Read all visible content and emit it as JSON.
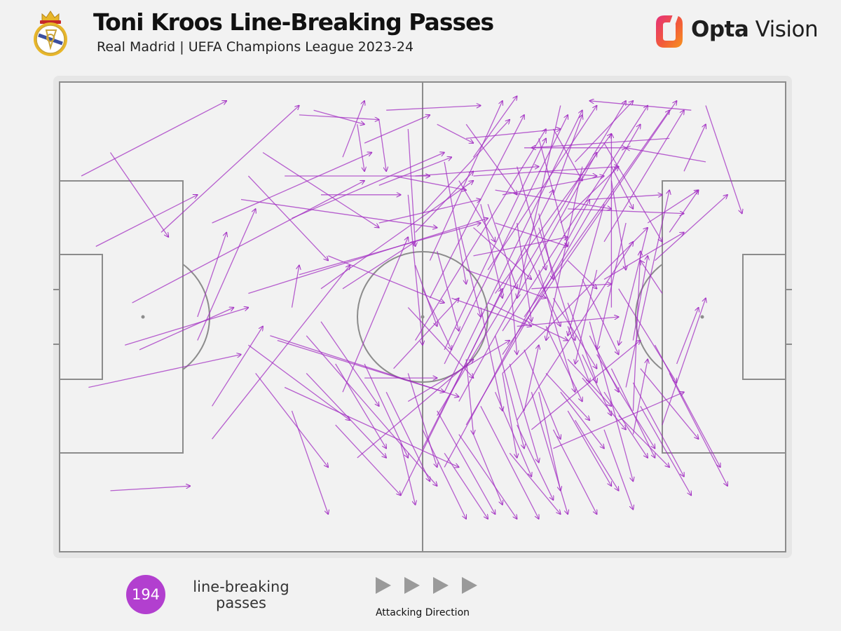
{
  "header": {
    "title": "Toni Kroos Line-Breaking Passes",
    "subtitle": "Real Madrid | UEFA Champions League 2023-24"
  },
  "brand": {
    "name_bold": "Opta",
    "name_regular": " Vision"
  },
  "footer": {
    "count": "194",
    "count_label": "line-breaking passes",
    "direction_label": "Attacking Direction"
  },
  "colors": {
    "pass": "#a12cc2",
    "badge": "#b23fcf",
    "pitch_lines": "#8c8c8c",
    "pitch_fill": "#f2f2f2",
    "direction_arrow": "#9a9a9a"
  },
  "chart_data": {
    "type": "scatter",
    "title": "Toni Kroos Line-Breaking Passes",
    "subtitle": "Real Madrid | UEFA Champions League 2023-24",
    "units": "pitch coordinates 0-100 (x = attacking direction left to right, y = top to bottom)",
    "attacking_direction": "left-to-right",
    "total_passes": 194,
    "passes": [
      [
        3,
        20,
        23,
        4
      ],
      [
        7,
        15,
        15,
        33
      ],
      [
        5,
        35,
        19,
        24
      ],
      [
        10,
        47,
        42,
        21
      ],
      [
        9,
        56,
        26,
        48
      ],
      [
        11,
        57,
        24,
        48
      ],
      [
        19,
        50,
        23,
        32
      ],
      [
        14,
        32,
        33,
        5
      ],
      [
        4,
        65,
        25,
        58
      ],
      [
        21,
        76,
        40,
        39
      ],
      [
        19,
        55,
        27,
        27
      ],
      [
        7,
        87,
        18,
        86
      ],
      [
        28,
        15,
        44,
        31
      ],
      [
        31,
        20,
        51,
        20
      ],
      [
        26,
        20,
        37,
        38
      ],
      [
        25,
        25,
        52,
        31
      ],
      [
        26,
        45,
        59,
        29
      ],
      [
        21,
        30,
        43,
        15
      ],
      [
        32,
        29,
        53,
        15
      ],
      [
        36,
        24,
        47,
        24
      ],
      [
        33,
        41,
        58,
        30
      ],
      [
        36,
        44,
        57,
        21
      ],
      [
        32,
        48,
        33,
        39
      ],
      [
        39,
        44,
        49,
        34
      ],
      [
        39,
        66,
        48,
        33
      ],
      [
        42,
        63,
        52,
        63
      ],
      [
        46,
        61,
        55,
        46
      ],
      [
        26,
        56,
        40,
        72
      ],
      [
        30,
        55,
        53,
        66
      ],
      [
        27,
        62,
        37,
        82
      ],
      [
        34,
        62,
        45,
        80
      ],
      [
        34,
        54,
        52,
        86
      ],
      [
        32,
        70,
        37,
        92
      ],
      [
        38,
        73,
        47,
        88
      ],
      [
        48,
        68,
        62,
        55
      ],
      [
        41,
        80,
        57,
        59
      ],
      [
        21,
        69,
        28,
        52
      ],
      [
        44,
        8,
        45,
        19
      ],
      [
        39,
        16,
        42,
        4
      ],
      [
        49,
        32,
        57,
        19
      ],
      [
        29,
        54,
        55,
        67
      ],
      [
        31,
        65,
        55,
        82
      ],
      [
        37,
        37,
        53,
        47
      ],
      [
        48,
        48,
        57,
        63
      ],
      [
        33,
        7,
        44,
        8
      ],
      [
        35,
        6,
        42,
        9
      ],
      [
        41,
        9,
        42,
        19
      ],
      [
        42,
        13,
        51,
        7
      ],
      [
        44,
        22,
        54,
        16
      ],
      [
        45,
        6,
        58,
        5
      ],
      [
        48,
        24,
        50,
        56
      ],
      [
        57,
        16,
        63,
        3
      ],
      [
        50,
        28,
        62,
        8
      ],
      [
        51,
        38,
        61,
        4
      ],
      [
        51,
        46,
        64,
        7
      ],
      [
        49,
        55,
        67,
        10
      ],
      [
        53,
        57,
        67,
        12
      ],
      [
        53,
        60,
        70,
        7
      ],
      [
        53,
        66,
        72,
        6
      ],
      [
        55,
        68,
        74,
        15
      ],
      [
        52,
        71,
        78,
        4
      ],
      [
        56,
        73,
        80,
        9
      ],
      [
        50,
        78,
        68,
        23
      ],
      [
        53,
        82,
        73,
        25
      ],
      [
        47,
        88,
        61,
        44
      ],
      [
        59,
        40,
        74,
        5
      ],
      [
        60,
        45,
        76,
        11
      ],
      [
        61,
        53,
        81,
        5
      ],
      [
        61,
        58,
        85,
        4
      ],
      [
        61,
        62,
        81,
        31
      ],
      [
        63,
        72,
        79,
        34
      ],
      [
        65,
        74,
        80,
        55
      ],
      [
        68,
        78,
        86,
        66
      ],
      [
        64,
        50,
        84,
        6
      ],
      [
        69,
        30,
        77,
        18
      ],
      [
        73,
        25,
        83,
        24
      ],
      [
        68,
        24,
        72,
        7
      ],
      [
        71,
        17,
        79,
        4
      ],
      [
        75,
        34,
        86,
        6
      ],
      [
        75,
        42,
        86,
        32
      ],
      [
        76,
        48,
        76,
        11
      ],
      [
        79,
        55,
        81,
        37
      ],
      [
        78,
        65,
        84,
        23
      ],
      [
        79,
        70,
        80,
        36
      ],
      [
        79,
        75,
        81,
        59
      ],
      [
        83,
        73,
        89,
        46
      ],
      [
        81,
        30,
        88,
        23
      ],
      [
        82,
        38,
        92,
        24
      ],
      [
        83,
        45,
        80,
        38
      ],
      [
        89,
        5,
        94,
        28
      ],
      [
        84,
        32,
        88,
        23
      ],
      [
        86,
        19,
        89,
        9
      ],
      [
        87,
        6,
        73,
        4
      ],
      [
        89,
        17,
        78,
        14
      ],
      [
        84,
        12,
        65,
        14
      ],
      [
        85,
        60,
        88,
        48
      ],
      [
        52,
        9,
        57,
        13
      ],
      [
        56,
        12,
        69,
        10
      ],
      [
        64,
        14,
        78,
        14
      ],
      [
        57,
        20,
        77,
        18
      ],
      [
        66,
        19,
        74,
        20
      ],
      [
        60,
        23,
        76,
        27
      ],
      [
        70,
        27,
        86,
        28
      ],
      [
        76,
        18,
        79,
        27
      ],
      [
        68,
        10,
        72,
        21
      ],
      [
        60,
        30,
        70,
        35
      ],
      [
        75,
        13,
        83,
        34
      ],
      [
        76,
        21,
        78,
        40
      ],
      [
        46,
        20,
        56,
        23
      ],
      [
        48,
        10,
        49,
        35
      ],
      [
        56,
        9,
        63,
        24
      ],
      [
        55,
        21,
        60,
        34
      ],
      [
        53,
        17,
        56,
        43
      ],
      [
        59,
        26,
        63,
        44
      ],
      [
        57,
        31,
        65,
        42
      ],
      [
        64,
        35,
        69,
        52
      ],
      [
        66,
        40,
        71,
        66
      ],
      [
        68,
        46,
        74,
        61
      ],
      [
        70,
        52,
        73,
        64
      ],
      [
        72,
        58,
        76,
        71
      ],
      [
        58,
        48,
        61,
        70
      ],
      [
        60,
        54,
        64,
        78
      ],
      [
        62,
        60,
        66,
        81
      ],
      [
        66,
        66,
        69,
        87
      ],
      [
        63,
        30,
        65,
        51
      ],
      [
        66,
        28,
        68,
        42
      ],
      [
        62,
        41,
        63,
        58
      ],
      [
        70,
        38,
        74,
        44
      ],
      [
        44,
        30,
        58,
        25
      ],
      [
        49,
        20,
        66,
        18
      ],
      [
        57,
        37,
        70,
        33
      ],
      [
        61,
        24,
        75,
        20
      ],
      [
        54,
        46,
        65,
        52
      ],
      [
        56,
        40,
        67,
        46
      ],
      [
        59,
        47,
        70,
        55
      ],
      [
        50,
        44,
        54,
        57
      ],
      [
        69,
        5,
        63,
        46
      ],
      [
        72,
        18,
        67,
        55
      ],
      [
        75,
        26,
        70,
        54
      ],
      [
        78,
        30,
        74,
        57
      ],
      [
        81,
        31,
        77,
        56
      ],
      [
        74,
        40,
        71,
        60
      ],
      [
        66,
        31,
        71,
        55
      ],
      [
        72,
        42,
        77,
        58
      ],
      [
        65,
        44,
        76,
        43
      ],
      [
        63,
        52,
        77,
        50
      ],
      [
        64,
        70,
        66,
        56
      ],
      [
        70,
        59,
        76,
        69
      ],
      [
        72,
        63,
        78,
        74
      ],
      [
        74,
        58,
        82,
        78
      ],
      [
        77,
        44,
        85,
        64
      ],
      [
        73,
        51,
        79,
        85
      ],
      [
        80,
        61,
        88,
        76
      ],
      [
        75,
        66,
        81,
        80
      ],
      [
        77,
        71,
        84,
        82
      ],
      [
        82,
        56,
        91,
        82
      ],
      [
        84,
        62,
        92,
        86
      ],
      [
        70,
        70,
        76,
        86
      ],
      [
        68,
        74,
        74,
        92
      ],
      [
        65,
        66,
        70,
        92
      ],
      [
        62,
        79,
        69,
        92
      ],
      [
        58,
        69,
        66,
        93
      ],
      [
        55,
        75,
        63,
        93
      ],
      [
        52,
        70,
        60,
        92
      ],
      [
        50,
        74,
        56,
        93
      ],
      [
        48,
        62,
        52,
        82
      ],
      [
        45,
        66,
        51,
        85
      ],
      [
        42,
        60,
        48,
        80
      ],
      [
        38,
        60,
        45,
        78
      ],
      [
        36,
        51,
        44,
        69
      ],
      [
        47,
        77,
        49,
        90
      ],
      [
        53,
        79,
        59,
        93
      ],
      [
        57,
        75,
        61,
        90
      ],
      [
        60,
        66,
        65,
        84
      ],
      [
        63,
        73,
        68,
        89
      ],
      [
        67,
        62,
        73,
        72
      ],
      [
        71,
        72,
        77,
        87
      ],
      [
        69,
        66,
        75,
        78
      ],
      [
        75,
        74,
        79,
        91
      ],
      [
        79,
        64,
        86,
        84
      ],
      [
        76,
        61,
        82,
        80
      ],
      [
        80,
        69,
        87,
        88
      ],
      [
        56,
        59,
        57,
        75
      ],
      [
        61,
        62,
        63,
        80
      ],
      [
        64,
        57,
        69,
        76
      ],
      [
        67,
        52,
        72,
        68
      ],
      [
        70,
        47,
        74,
        64
      ],
      [
        73,
        54,
        77,
        66
      ],
      [
        66,
        12,
        70,
        35
      ],
      [
        63,
        18,
        67,
        40
      ],
      [
        58,
        26,
        61,
        46
      ],
      [
        55,
        31,
        58,
        50
      ],
      [
        52,
        36,
        55,
        53
      ],
      [
        49,
        39,
        52,
        52
      ]
    ]
  }
}
